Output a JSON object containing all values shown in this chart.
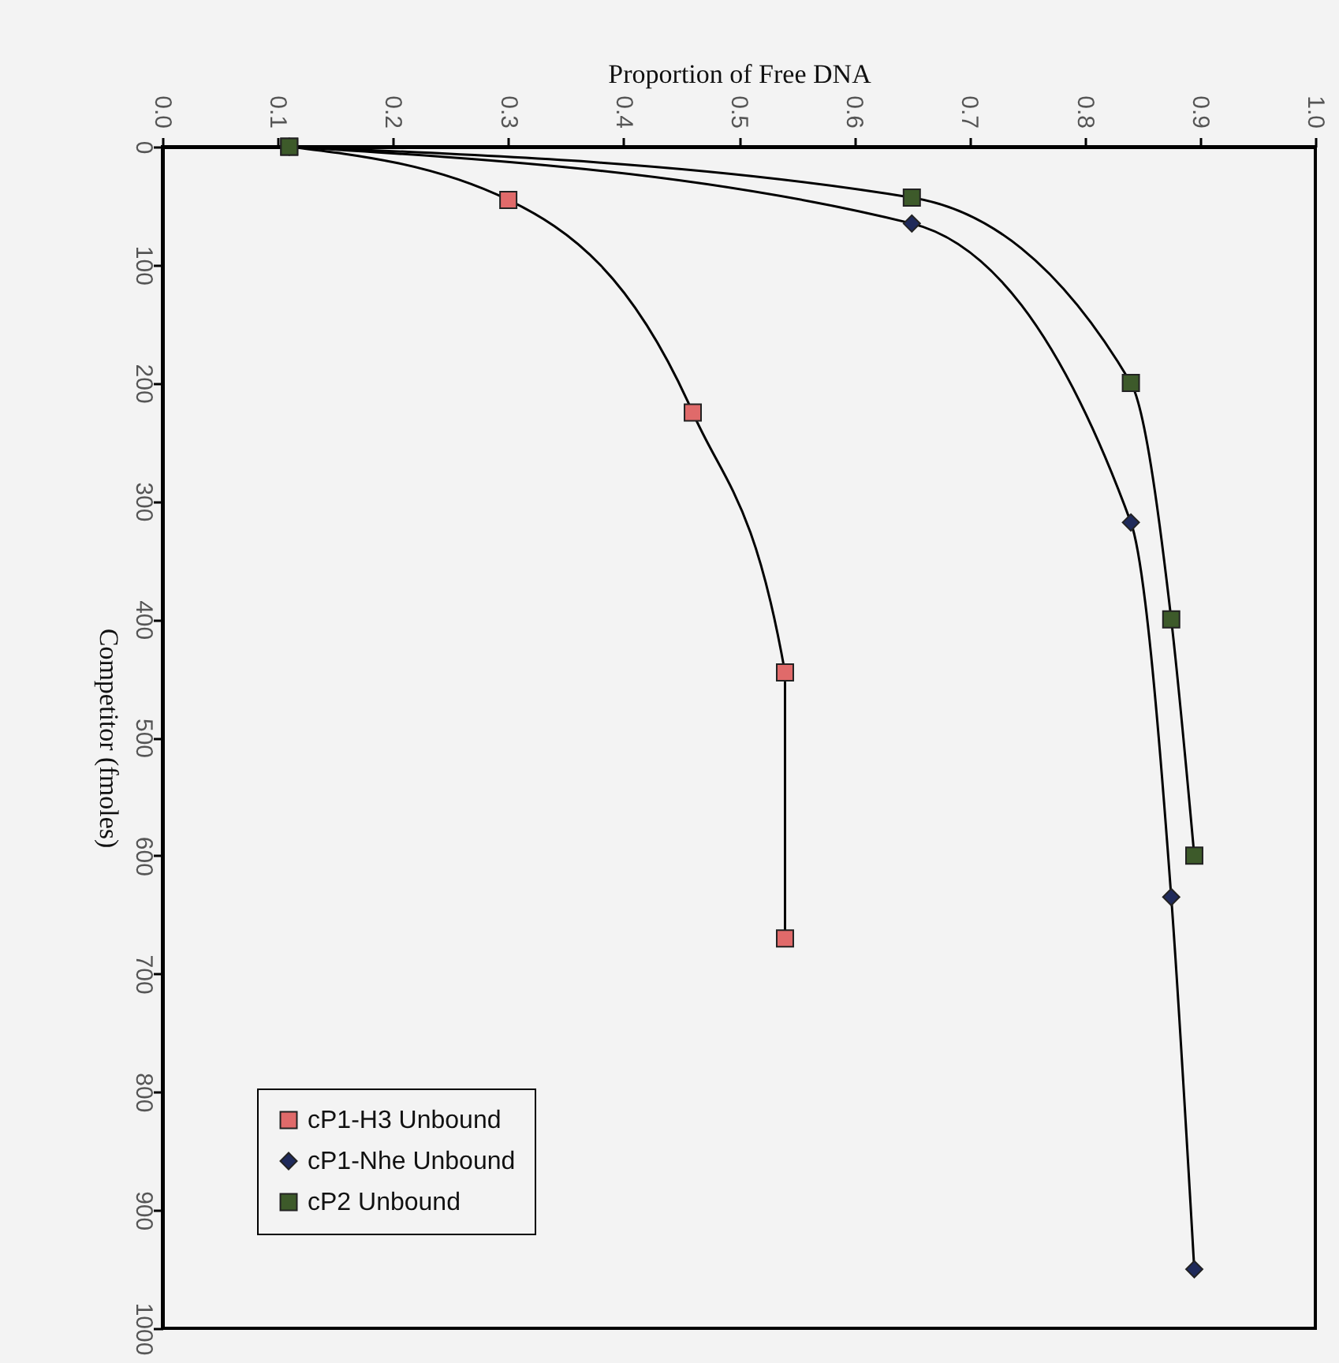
{
  "chart_data": {
    "type": "line",
    "xlabel": "Proportion of Free DNA",
    "ylabel": "Competitor (fmoles)",
    "xlim": [
      0,
      1
    ],
    "xticks": [
      {
        "value": 0,
        "label": "0.0"
      },
      0.1,
      0.2,
      0.3,
      0.4,
      0.5,
      0.6,
      0.7,
      0.8,
      0.9,
      {
        "value": 1,
        "label": "1.0"
      }
    ],
    "ylim": [
      1000,
      0
    ],
    "yticks": [
      0,
      100,
      200,
      300,
      400,
      500,
      600,
      700,
      800,
      900,
      1000
    ],
    "grid": false,
    "legend": "bottom left",
    "series": [
      {
        "name": "cP1-H3 Unbound",
        "color": "#e06a6a",
        "marker": "square",
        "x": [
          0.11,
          0.3,
          0.46,
          0.54,
          0.54
        ],
        "values": [
          0,
          45,
          225,
          445,
          670
        ]
      },
      {
        "name": "cP1-Nhe Unbound",
        "color": "#1f2a5a",
        "marker": "diamond",
        "x": [
          0.11,
          0.65,
          0.84,
          0.875,
          0.895
        ],
        "values": [
          0,
          65,
          318,
          635,
          950
        ]
      },
      {
        "name": "cP2 Unbound",
        "color": "#3d5a2a",
        "marker": "square",
        "x": [
          0.11,
          0.65,
          0.84,
          0.875,
          0.895
        ],
        "values": [
          0,
          43,
          200,
          400,
          600
        ]
      }
    ]
  }
}
